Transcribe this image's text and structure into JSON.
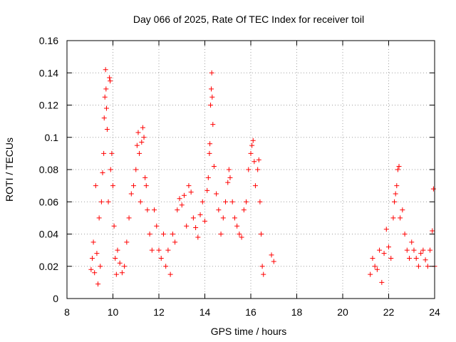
{
  "chart_data": {
    "type": "scatter",
    "title": "Day 066 of 2025, Rate Of TEC Index for receiver toil",
    "xlabel": "GPS time / hours",
    "ylabel": "ROTI / TECUs",
    "xlim": [
      8,
      24
    ],
    "ylim": [
      0,
      0.16
    ],
    "x_ticks": [
      "8",
      "10",
      "12",
      "14",
      "16",
      "18",
      "20",
      "22",
      "24"
    ],
    "y_ticks": [
      "0",
      "0.02",
      "0.04",
      "0.06",
      "0.08",
      "0.1",
      "0.12",
      "0.14",
      "0.16"
    ],
    "grid": true,
    "marker": "+",
    "color": "#ff0000",
    "series": [
      {
        "name": "ROTI",
        "points": [
          [
            9.05,
            0.018
          ],
          [
            9.1,
            0.025
          ],
          [
            9.15,
            0.035
          ],
          [
            9.2,
            0.016
          ],
          [
            9.25,
            0.07
          ],
          [
            9.3,
            0.028
          ],
          [
            9.35,
            0.009
          ],
          [
            9.4,
            0.05
          ],
          [
            9.45,
            0.02
          ],
          [
            9.5,
            0.06
          ],
          [
            9.55,
            0.078
          ],
          [
            9.6,
            0.09
          ],
          [
            9.62,
            0.112
          ],
          [
            9.65,
            0.125
          ],
          [
            9.68,
            0.142
          ],
          [
            9.7,
            0.13
          ],
          [
            9.72,
            0.118
          ],
          [
            9.75,
            0.105
          ],
          [
            9.8,
            0.06
          ],
          [
            9.85,
            0.137
          ],
          [
            9.88,
            0.135
          ],
          [
            9.9,
            0.08
          ],
          [
            9.95,
            0.09
          ],
          [
            10.0,
            0.07
          ],
          [
            10.05,
            0.045
          ],
          [
            10.1,
            0.025
          ],
          [
            10.15,
            0.015
          ],
          [
            10.2,
            0.03
          ],
          [
            10.3,
            0.022
          ],
          [
            10.4,
            0.016
          ],
          [
            10.5,
            0.02
          ],
          [
            10.6,
            0.035
          ],
          [
            10.7,
            0.05
          ],
          [
            10.8,
            0.065
          ],
          [
            10.9,
            0.07
          ],
          [
            11.0,
            0.08
          ],
          [
            11.05,
            0.095
          ],
          [
            11.1,
            0.103
          ],
          [
            11.15,
            0.09
          ],
          [
            11.2,
            0.06
          ],
          [
            11.25,
            0.097
          ],
          [
            11.3,
            0.106
          ],
          [
            11.35,
            0.1
          ],
          [
            11.4,
            0.075
          ],
          [
            11.45,
            0.07
          ],
          [
            11.5,
            0.055
          ],
          [
            11.6,
            0.04
          ],
          [
            11.7,
            0.03
          ],
          [
            11.8,
            0.055
          ],
          [
            11.9,
            0.045
          ],
          [
            12.0,
            0.03
          ],
          [
            12.1,
            0.025
          ],
          [
            12.2,
            0.04
          ],
          [
            12.3,
            0.02
          ],
          [
            12.4,
            0.03
          ],
          [
            12.5,
            0.015
          ],
          [
            12.6,
            0.04
          ],
          [
            12.7,
            0.035
          ],
          [
            12.8,
            0.055
          ],
          [
            12.9,
            0.062
          ],
          [
            13.0,
            0.058
          ],
          [
            13.1,
            0.064
          ],
          [
            13.2,
            0.045
          ],
          [
            13.3,
            0.07
          ],
          [
            13.4,
            0.066
          ],
          [
            13.5,
            0.05
          ],
          [
            13.6,
            0.044
          ],
          [
            13.7,
            0.038
          ],
          [
            13.8,
            0.052
          ],
          [
            13.9,
            0.06
          ],
          [
            14.0,
            0.048
          ],
          [
            14.1,
            0.067
          ],
          [
            14.15,
            0.075
          ],
          [
            14.2,
            0.09
          ],
          [
            14.22,
            0.096
          ],
          [
            14.25,
            0.12
          ],
          [
            14.28,
            0.13
          ],
          [
            14.3,
            0.14
          ],
          [
            14.32,
            0.125
          ],
          [
            14.35,
            0.108
          ],
          [
            14.4,
            0.082
          ],
          [
            14.5,
            0.065
          ],
          [
            14.6,
            0.055
          ],
          [
            14.7,
            0.04
          ],
          [
            14.8,
            0.05
          ],
          [
            14.9,
            0.06
          ],
          [
            15.0,
            0.072
          ],
          [
            15.05,
            0.08
          ],
          [
            15.1,
            0.075
          ],
          [
            15.2,
            0.06
          ],
          [
            15.3,
            0.05
          ],
          [
            15.4,
            0.045
          ],
          [
            15.5,
            0.04
          ],
          [
            15.6,
            0.038
          ],
          [
            15.7,
            0.055
          ],
          [
            15.8,
            0.06
          ],
          [
            15.9,
            0.08
          ],
          [
            16.0,
            0.09
          ],
          [
            16.05,
            0.095
          ],
          [
            16.1,
            0.098
          ],
          [
            16.15,
            0.085
          ],
          [
            16.2,
            0.07
          ],
          [
            16.3,
            0.08
          ],
          [
            16.35,
            0.086
          ],
          [
            16.4,
            0.06
          ],
          [
            16.45,
            0.04
          ],
          [
            16.5,
            0.02
          ],
          [
            16.55,
            0.015
          ],
          [
            16.9,
            0.027
          ],
          [
            17.0,
            0.023
          ],
          [
            21.2,
            0.015
          ],
          [
            21.3,
            0.025
          ],
          [
            21.4,
            0.02
          ],
          [
            21.5,
            0.018
          ],
          [
            21.6,
            0.03
          ],
          [
            21.7,
            0.01
          ],
          [
            21.8,
            0.028
          ],
          [
            21.9,
            0.043
          ],
          [
            22.0,
            0.032
          ],
          [
            22.1,
            0.025
          ],
          [
            22.2,
            0.05
          ],
          [
            22.25,
            0.06
          ],
          [
            22.3,
            0.065
          ],
          [
            22.35,
            0.07
          ],
          [
            22.4,
            0.08
          ],
          [
            22.45,
            0.082
          ],
          [
            22.5,
            0.05
          ],
          [
            22.6,
            0.055
          ],
          [
            22.7,
            0.04
          ],
          [
            22.8,
            0.03
          ],
          [
            22.9,
            0.025
          ],
          [
            23.0,
            0.035
          ],
          [
            23.1,
            0.03
          ],
          [
            23.2,
            0.025
          ],
          [
            23.3,
            0.02
          ],
          [
            23.4,
            0.028
          ],
          [
            23.5,
            0.03
          ],
          [
            23.6,
            0.024
          ],
          [
            23.7,
            0.02
          ],
          [
            23.8,
            0.03
          ],
          [
            23.9,
            0.042
          ],
          [
            23.95,
            0.068
          ],
          [
            24.0,
            0.02
          ]
        ]
      }
    ]
  }
}
